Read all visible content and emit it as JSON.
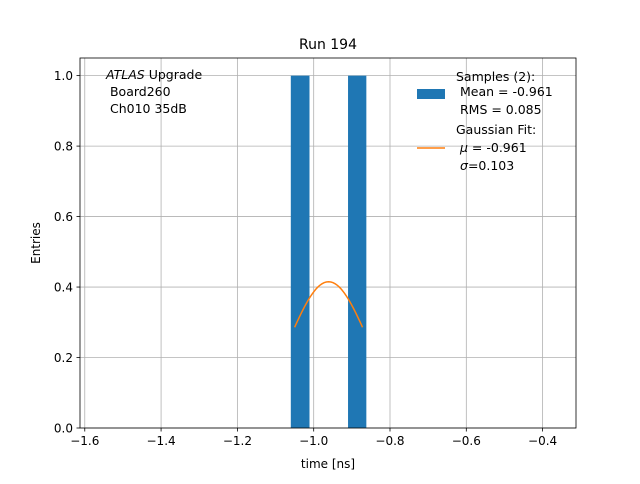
{
  "chart_data": {
    "type": "bar",
    "title": "Run 194",
    "xlabel": "time [ns]",
    "ylabel": "Entries",
    "xlim": [
      -1.6125,
      -0.3125
    ],
    "ylim": [
      0,
      1.05
    ],
    "grid": true,
    "x_ticks": [
      -1.6,
      -1.4,
      -1.2,
      -1.0,
      -0.8,
      -0.6,
      -0.4
    ],
    "x_tick_labels": [
      "−1.6",
      "−1.4",
      "−1.2",
      "−1.0",
      "−0.8",
      "−0.6",
      "−0.4"
    ],
    "y_ticks": [
      0.0,
      0.2,
      0.4,
      0.6,
      0.8,
      1.0
    ],
    "y_tick_labels": [
      "0.0",
      "0.2",
      "0.4",
      "0.6",
      "0.8",
      "1.0"
    ],
    "bars": [
      {
        "x0": -1.06,
        "x1": -1.011,
        "value": 1.0
      },
      {
        "x0": -0.91,
        "x1": -0.862,
        "value": 1.0
      }
    ],
    "fit": {
      "mu": -0.961,
      "sigma": 0.103,
      "amplitude": 0.415,
      "x_start": -1.05,
      "x_end": -0.872
    },
    "annotation": {
      "italic": "ATLAS",
      "rest": " Upgrade",
      "line2": " Board260",
      "line3": " Ch010 35dB"
    },
    "legend": {
      "position": "top-right",
      "samples": {
        "line1": "Samples (2):",
        "line2": " Mean = -0.961",
        "line3": " RMS = 0.085"
      },
      "fit": {
        "line1": "Gaussian Fit:",
        "mu_sym": "μ",
        "mu_text": " = -0.961",
        "sigma_sym": "σ",
        "sigma_text": "=0.103"
      }
    },
    "colors": {
      "bar": "#1f77b4",
      "fit": "#ff7f0e",
      "grid": "#b0b0b0"
    }
  }
}
